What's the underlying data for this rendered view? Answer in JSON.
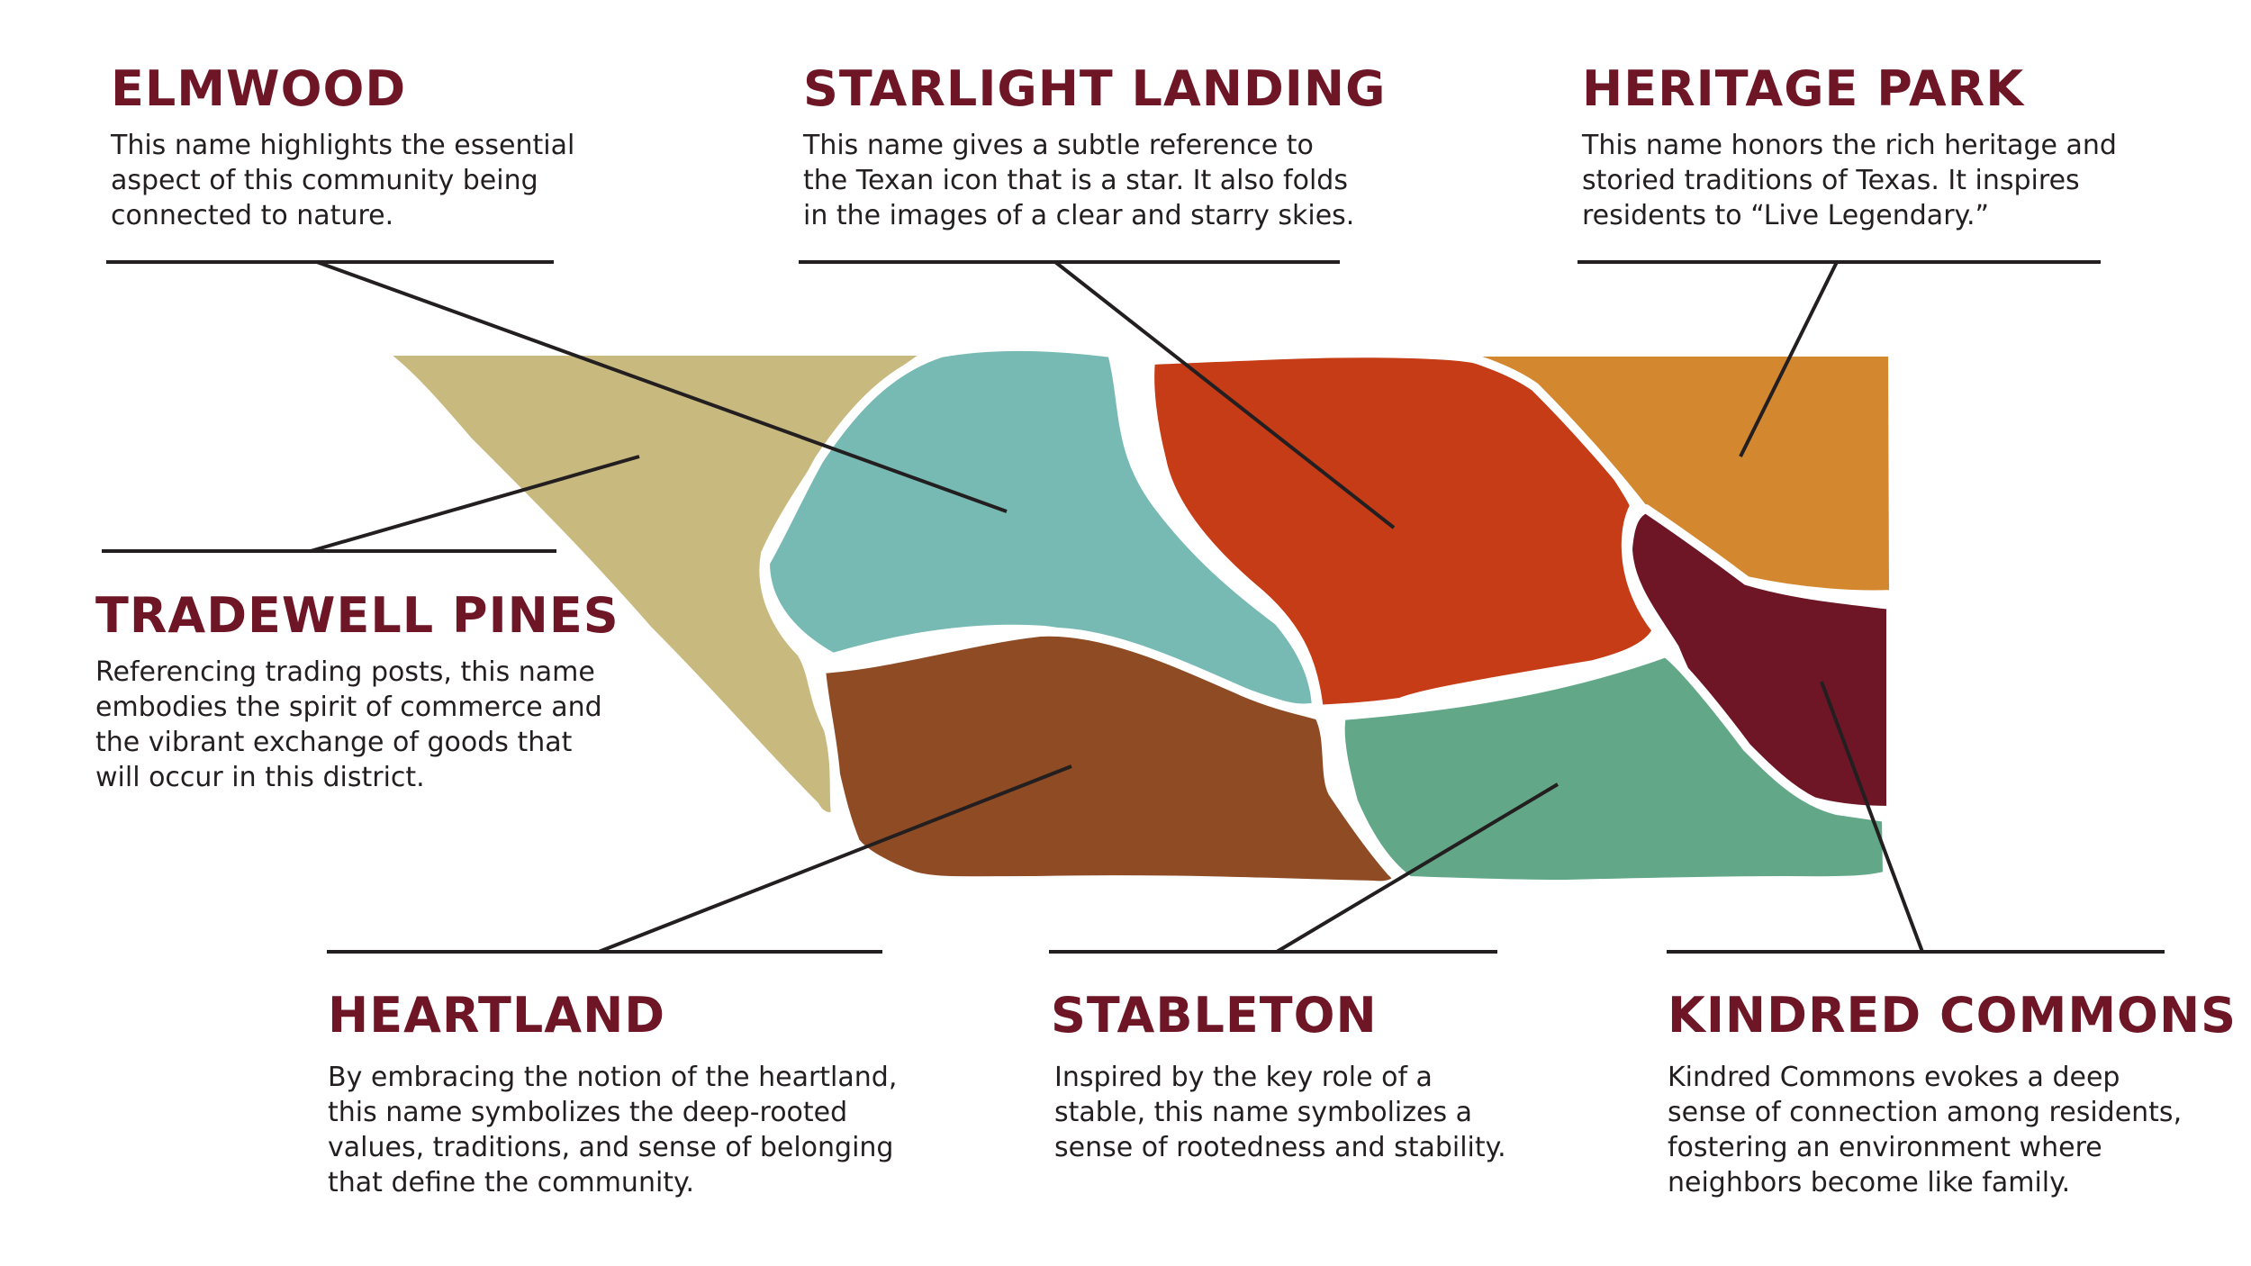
{
  "colors": {
    "title": "#6e1626",
    "text": "#231f20",
    "elmwood": "#77bab4",
    "starlight_landing": "#c53c17",
    "heritage_park": "#d38830",
    "tradewell_pines": "#c8b97f",
    "heartland": "#8f4b23",
    "stableton": "#62a888",
    "kindred_commons": "#6e1626"
  },
  "labels": {
    "elmwood": {
      "title": "ELMWOOD",
      "lines": [
        "This name highlights the essential",
        "aspect of this community being",
        "connected to nature."
      ]
    },
    "starlight_landing": {
      "title": "STARLIGHT LANDING",
      "lines": [
        "This name gives a subtle reference to",
        "the Texan icon that is a star. It also folds",
        "in the images of a clear and starry skies."
      ]
    },
    "heritage_park": {
      "title": "HERITAGE PARK",
      "lines": [
        "This name honors the rich heritage and",
        "storied traditions of Texas. It inspires",
        "residents to “Live Legendary.”"
      ]
    },
    "tradewell_pines": {
      "title": "TRADEWELL PINES",
      "lines": [
        "Referencing trading posts, this name",
        "embodies the spirit of commerce and",
        "the vibrant exchange of goods that",
        "will occur in this district."
      ]
    },
    "heartland": {
      "title": "HEARTLAND",
      "lines": [
        "By embracing the notion of the heartland,",
        "this name symbolizes the deep-rooted",
        "values, traditions, and sense of belonging",
        "that define the community."
      ]
    },
    "stableton": {
      "title": "STABLETON",
      "lines": [
        "Inspired by the key role of a",
        "stable, this name symbolizes a",
        "sense of rootedness and stability."
      ]
    },
    "kindred_commons": {
      "title": "KINDRED COMMONS",
      "lines": [
        "Kindred Commons evokes a deep",
        "sense of connection among residents,",
        "fostering an environment where",
        "neighbors become like family."
      ]
    }
  }
}
